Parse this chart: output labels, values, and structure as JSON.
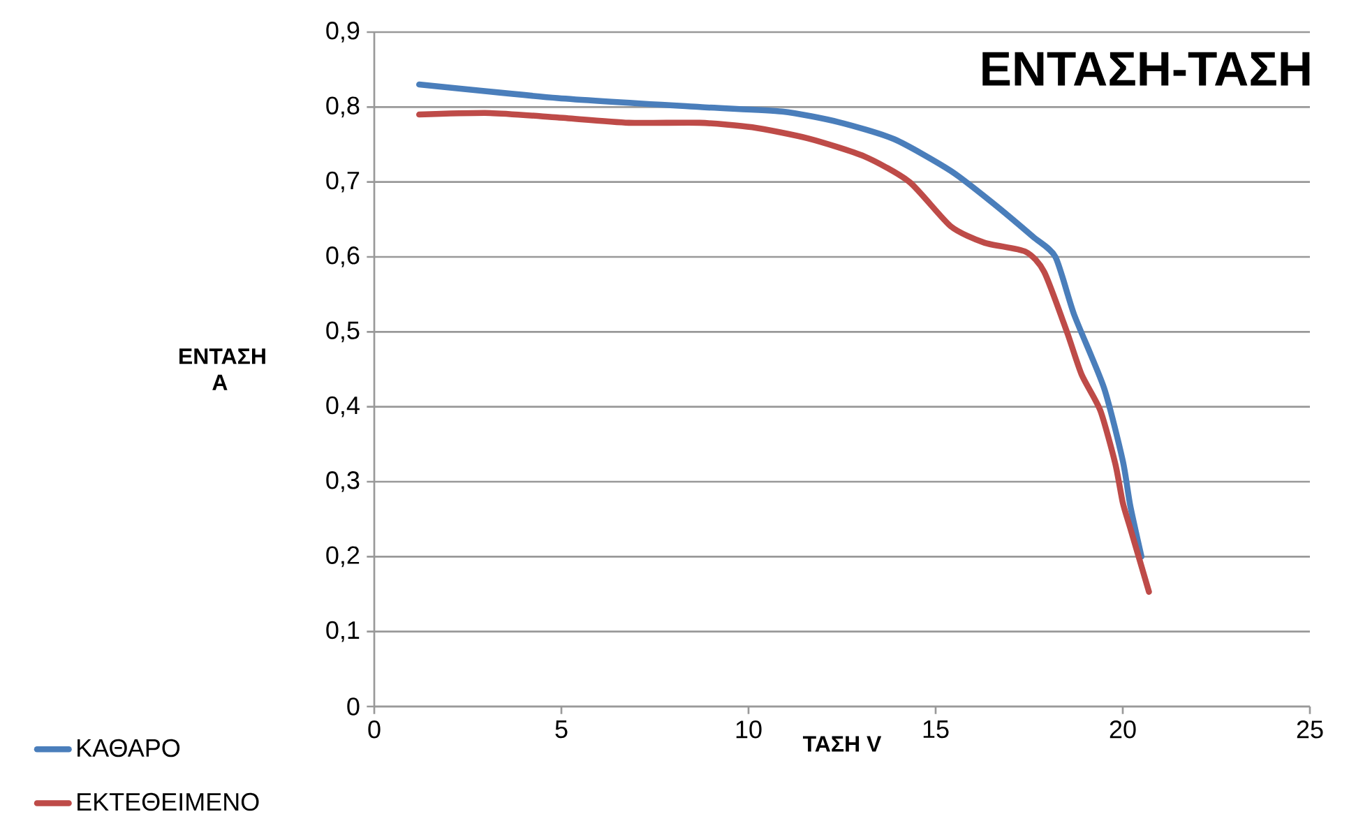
{
  "chart_data": {
    "type": "line",
    "title": "ΕΝΤΑΣΗ-ΤΑΣΗ",
    "xlabel": "ΤΑΣΗ V",
    "ylabel": "ΕΝΤΑΣΗ Α",
    "xlim": [
      0,
      25
    ],
    "xticks": [
      0,
      5,
      10,
      15,
      20,
      25
    ],
    "ylim": [
      0,
      0.9
    ],
    "yticks": [
      {
        "value": 0,
        "label": "0"
      },
      {
        "value": 0.1,
        "label": "0,1"
      },
      {
        "value": 0.2,
        "label": "0,2"
      },
      {
        "value": 0.3,
        "label": "0,3"
      },
      {
        "value": 0.4,
        "label": "0,4"
      },
      {
        "value": 0.5,
        "label": "0,5"
      },
      {
        "value": 0.6,
        "label": "0,6"
      },
      {
        "value": 0.7,
        "label": "0,7"
      },
      {
        "value": 0.8,
        "label": "0,8"
      },
      {
        "value": 0.9,
        "label": "0,9"
      }
    ],
    "grid": "y",
    "legend": "bottom left",
    "marker": "none",
    "line_style": "solid",
    "series": [
      {
        "name": "ΚΑΘΑΡΟ",
        "color": "#4a7ebb",
        "x": [
          1.2,
          4.9,
          8.7,
          10.9,
          12.4,
          13.9,
          15.4,
          16.5,
          17.6,
          18.2,
          18.7,
          19.5,
          20.0,
          20.2,
          20.5
        ],
        "values": [
          0.83,
          0.812,
          0.8,
          0.794,
          0.78,
          0.757,
          0.715,
          0.673,
          0.627,
          0.6,
          0.523,
          0.425,
          0.328,
          0.268,
          0.2
        ]
      },
      {
        "name": "ΕΚΤΕΘΕΙΜΕΝΟ",
        "color": "#be4b48",
        "x": [
          1.2,
          3.1,
          4.9,
          6.8,
          8.7,
          10.1,
          11.6,
          13.1,
          14.3,
          15.4,
          16.3,
          17.4,
          17.9,
          18.5,
          18.9,
          19.4,
          19.8,
          20.0,
          20.2,
          20.7
        ],
        "values": [
          0.79,
          0.792,
          0.786,
          0.779,
          0.779,
          0.773,
          0.758,
          0.734,
          0.7,
          0.641,
          0.619,
          0.607,
          0.58,
          0.501,
          0.443,
          0.395,
          0.324,
          0.272,
          0.238,
          0.153
        ]
      }
    ]
  }
}
